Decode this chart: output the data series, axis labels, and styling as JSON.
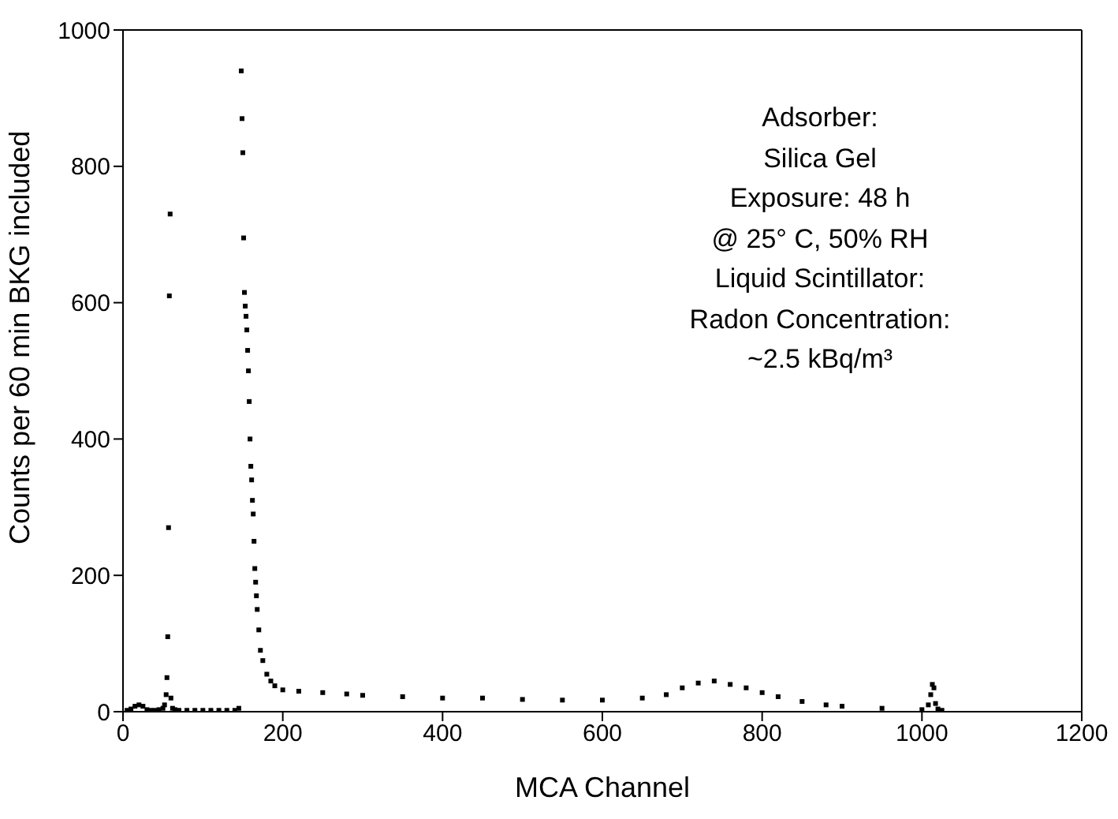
{
  "chart_data": {
    "type": "scatter",
    "xlabel": "MCA Channel",
    "ylabel": "Counts per 60 min BKG included",
    "x": [
      5,
      10,
      15,
      20,
      25,
      30,
      35,
      40,
      45,
      50,
      52,
      54,
      55,
      56,
      57,
      58,
      59,
      60,
      62,
      65,
      70,
      80,
      90,
      100,
      110,
      120,
      130,
      140,
      145,
      148,
      149,
      150,
      151,
      152,
      153,
      154,
      155,
      156,
      157,
      158,
      159,
      160,
      161,
      162,
      163,
      164,
      165,
      166,
      167,
      168,
      170,
      172,
      175,
      180,
      185,
      190,
      200,
      220,
      250,
      280,
      300,
      350,
      400,
      450,
      500,
      550,
      600,
      650,
      680,
      700,
      720,
      740,
      760,
      780,
      800,
      820,
      850,
      880,
      900,
      950,
      1000,
      1008,
      1011,
      1013,
      1015,
      1017,
      1020,
      1025
    ],
    "values": [
      2,
      4,
      8,
      10,
      8,
      3,
      2,
      2,
      3,
      5,
      10,
      25,
      50,
      110,
      270,
      610,
      730,
      20,
      5,
      3,
      2,
      2,
      2,
      2,
      2,
      2,
      2,
      2,
      5,
      940,
      870,
      820,
      695,
      615,
      595,
      580,
      560,
      530,
      500,
      455,
      400,
      360,
      340,
      310,
      290,
      250,
      210,
      190,
      170,
      150,
      120,
      90,
      75,
      55,
      45,
      38,
      32,
      30,
      28,
      26,
      24,
      22,
      20,
      20,
      18,
      17,
      17,
      20,
      25,
      35,
      42,
      45,
      40,
      35,
      28,
      22,
      15,
      10,
      8,
      5,
      3,
      10,
      25,
      40,
      35,
      12,
      4,
      2
    ],
    "color": "#000000",
    "marker": "square",
    "xlim": [
      0,
      1200
    ],
    "xticks": [
      0,
      200,
      400,
      600,
      800,
      1000,
      1200
    ],
    "ylim": [
      0,
      1000
    ],
    "yticks": [
      0,
      200,
      400,
      600,
      800,
      1000
    ],
    "grid": false,
    "annotations": [
      "Adsorber:",
      "Silica Gel",
      "Exposure: 48 h",
      "@ 25° C, 50% RH",
      "Liquid Scintillator:",
      "Radon Concentration:",
      "~2.5 kBq/m³"
    ]
  }
}
